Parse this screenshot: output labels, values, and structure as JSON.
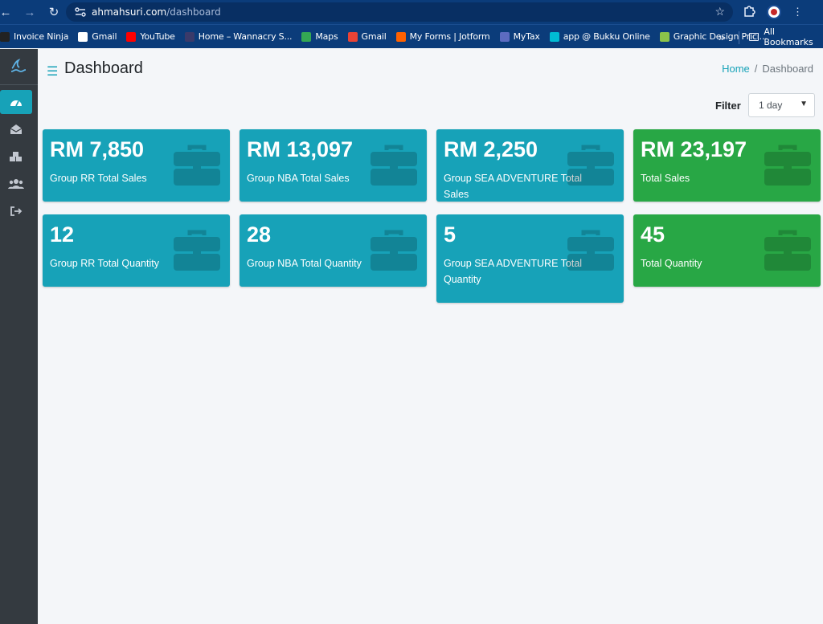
{
  "browser": {
    "url_host": "ahmahsuri.com",
    "url_path": "/dashboard"
  },
  "bookmarks": [
    {
      "label": "Invoice Ninja",
      "color": "#222222"
    },
    {
      "label": "Gmail",
      "color": "#ffffff"
    },
    {
      "label": "YouTube",
      "color": "#ff0000"
    },
    {
      "label": "Home – Wannacry S...",
      "color": "#3a3a6a"
    },
    {
      "label": "Maps",
      "color": "#34a853"
    },
    {
      "label": "Gmail",
      "color": "#ea4335"
    },
    {
      "label": "My Forms | Jotform",
      "color": "#ff6100"
    },
    {
      "label": "MyTax",
      "color": "#5c6bc0"
    },
    {
      "label": "app @ Bukku Online",
      "color": "#00bcd4"
    },
    {
      "label": "Graphic Design Prici...",
      "color": "#8bc34a"
    }
  ],
  "bookmarks_all": "All Bookmarks",
  "header": {
    "title": "Dashboard",
    "breadcrumb_home": "Home",
    "breadcrumb_sep": "/",
    "breadcrumb_current": "Dashboard"
  },
  "filter": {
    "label": "Filter",
    "selected": "1 day"
  },
  "cards": [
    {
      "value": "RM 7,850",
      "label": "Group RR Total Sales",
      "variant": "info"
    },
    {
      "value": "RM 13,097",
      "label": "Group NBA Total Sales",
      "variant": "info"
    },
    {
      "value": "RM 2,250",
      "label": "Group SEA ADVENTURE Total Sales",
      "variant": "info"
    },
    {
      "value": "RM 23,197",
      "label": "Total Sales",
      "variant": "success"
    },
    {
      "value": "12",
      "label": "Group RR Total Quantity",
      "variant": "info"
    },
    {
      "value": "28",
      "label": "Group NBA Total Quantity",
      "variant": "info"
    },
    {
      "value": "5",
      "label": "Group SEA ADVENTURE Total Quantity",
      "variant": "info"
    },
    {
      "value": "45",
      "label": "Total Quantity",
      "variant": "success"
    }
  ],
  "sidebar": {
    "items": [
      {
        "icon": "dashboard-gauge-icon",
        "active": true
      },
      {
        "icon": "envelope-open-icon",
        "active": false
      },
      {
        "icon": "boxes-icon",
        "active": false
      },
      {
        "icon": "users-icon",
        "active": false
      },
      {
        "icon": "sign-out-icon",
        "active": false
      }
    ]
  },
  "colors": {
    "info": "#17a2b8",
    "success": "#28a745",
    "sidebar": "#343a40",
    "chrome": "#0b3c7a"
  }
}
